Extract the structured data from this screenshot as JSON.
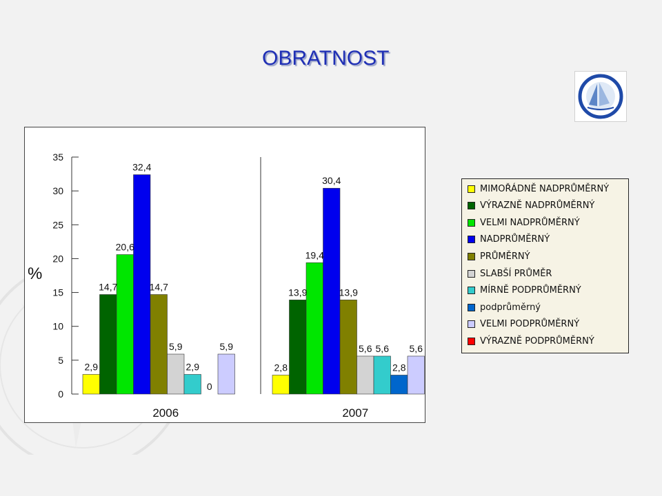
{
  "title": "OBRATNOST",
  "logo_text": "YACHT KLUB CERE · SPORTOVNÍ CENTRUM MLÁDEŽE",
  "chart_data": {
    "type": "bar",
    "ylabel": "%",
    "ylim": [
      0,
      35
    ],
    "yticks": [
      0,
      5,
      10,
      15,
      20,
      25,
      30,
      35
    ],
    "grid": false,
    "legend_position": "right",
    "categories": [
      "2006",
      "2007"
    ],
    "series": [
      {
        "name": "MIMOŘÁDNĚ NADPRŮMĚRNÝ",
        "color": "#ffff00",
        "values": [
          2.9,
          2.8
        ],
        "labels": [
          "2,9",
          "2,8"
        ]
      },
      {
        "name": "VÝRAZNĚ NADPRŮMĚRNÝ",
        "color": "#006400",
        "values": [
          14.7,
          13.9
        ],
        "labels": [
          "14,7",
          "13,9"
        ]
      },
      {
        "name": "VELMI NADPRŮMĚRNÝ",
        "color": "#00e600",
        "values": [
          20.6,
          19.4
        ],
        "labels": [
          "20,6",
          "19,4"
        ]
      },
      {
        "name": "NADPRŮMĚRNÝ",
        "color": "#0000ee",
        "values": [
          32.4,
          30.4
        ],
        "labels": [
          "32,4",
          "30,4"
        ]
      },
      {
        "name": "PRŮMĚRNÝ",
        "color": "#808000",
        "values": [
          14.7,
          13.9
        ],
        "labels": [
          "14,7",
          "13,9"
        ]
      },
      {
        "name": "SLABŠÍ PRŮMĚR",
        "color": "#d3d3d3",
        "values": [
          5.9,
          5.6
        ],
        "labels": [
          "5,9",
          "5,6"
        ]
      },
      {
        "name": "MÍRNĚ PODPRŮMĚRNÝ",
        "color": "#33cccc",
        "values": [
          2.9,
          5.6
        ],
        "labels": [
          "2,9",
          "5,6"
        ]
      },
      {
        "name": "podprůměrný",
        "color": "#0066cc",
        "values": [
          0,
          2.8
        ],
        "labels": [
          "0",
          "2,8"
        ]
      },
      {
        "name": "VELMI PODPRŮMĚRNÝ",
        "color": "#ccccff",
        "values": [
          5.9,
          5.6
        ],
        "labels": [
          "5,9",
          "5,6"
        ]
      },
      {
        "name": "VÝRAZNĚ PODPRŮMĚRNÝ",
        "color": "#ff0000",
        "values": [
          0,
          0
        ],
        "labels": [
          "",
          ""
        ]
      }
    ]
  }
}
